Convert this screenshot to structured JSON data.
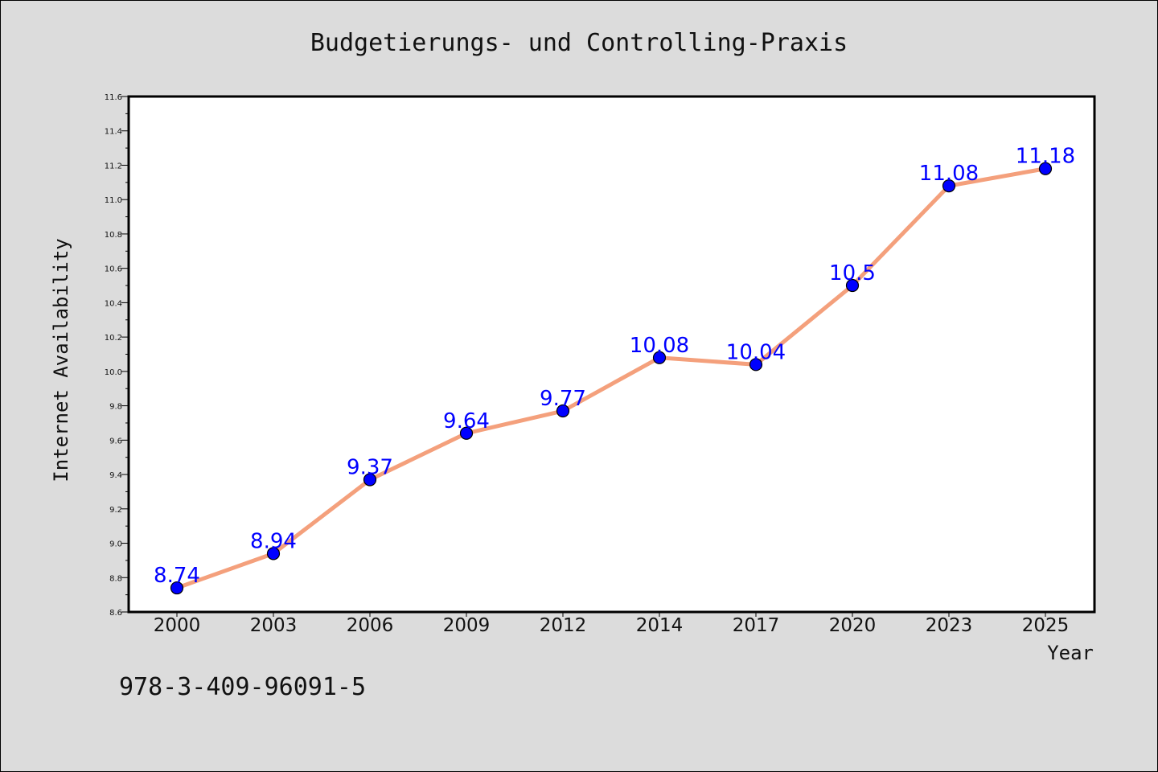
{
  "chart_data": {
    "type": "line",
    "title": "Budgetierungs- und Controlling-Praxis",
    "xlabel": "Year",
    "ylabel": "Internet Availability",
    "categories": [
      "2000",
      "2003",
      "2006",
      "2009",
      "2012",
      "2014",
      "2017",
      "2020",
      "2023",
      "2025"
    ],
    "series": [
      {
        "values": [
          8.74,
          8.94,
          9.37,
          9.64,
          9.77,
          10.08,
          10.04,
          10.5,
          11.08,
          11.18
        ],
        "labels": [
          "8.74",
          "8.94",
          "9.37",
          "9.64",
          "9.77",
          "10.08",
          "10.04",
          "10.5",
          "11.08",
          "11.18"
        ]
      }
    ],
    "ylim": [
      8.6,
      11.6
    ],
    "yticks": [
      "8.6",
      "8.8",
      "9.0",
      "9.2",
      "9.4",
      "9.6",
      "9.8",
      "10.0",
      "10.2",
      "10.4",
      "10.6",
      "10.8",
      "11.0",
      "11.2",
      "11.4",
      "11.6"
    ],
    "grid": false,
    "legend": "none",
    "colors": {
      "line": "#f4a07c",
      "marker": "#0000ff",
      "data_label": "#0000ff",
      "plot_background": "#ffffff",
      "figure_background": "#dcdcdc"
    }
  },
  "footer": {
    "isbn": "978-3-409-96091-5"
  }
}
